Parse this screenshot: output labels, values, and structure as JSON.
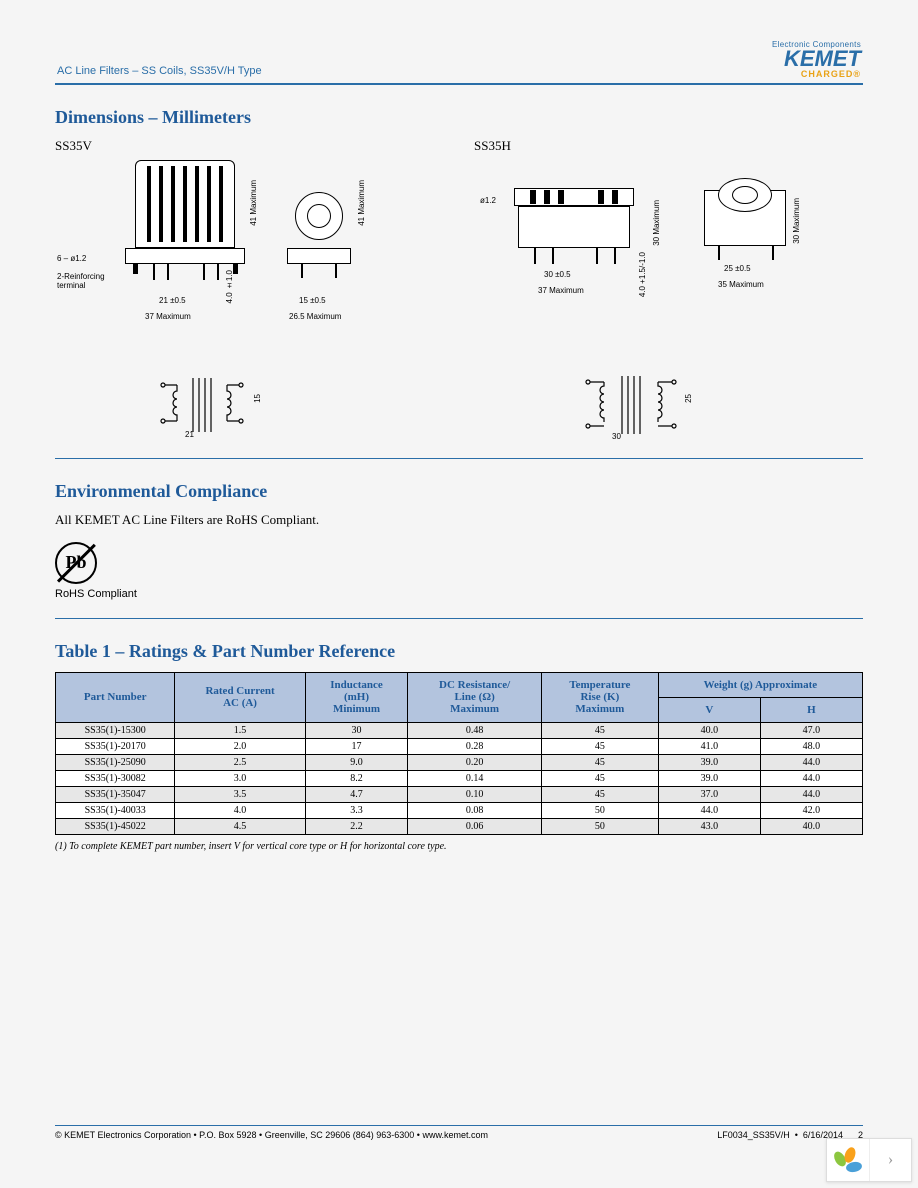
{
  "header": {
    "doc_title": "AC Line Filters – SS Coils, SS35V/H Type",
    "logo_tag": "Electronic Components",
    "logo_name": "KEMET",
    "logo_charged": "CHARGED®"
  },
  "dimensions": {
    "title": "Dimensions – Millimeters",
    "ss35v_label": "SS35V",
    "ss35h_label": "SS35H",
    "v": {
      "pin_note": "6 – ø1.2",
      "rein_note": "2-Reinforcing\nterminal",
      "h_max": "41 Maximum",
      "w1": "21 ±0.5",
      "w_max": "37 Maximum",
      "lead1": "4.0 ±1.0",
      "side_w": "15 ±0.5",
      "side_max": "26.5 Maximum",
      "sch_w": "21",
      "sch_h": "15"
    },
    "h": {
      "pin": "ø1.2",
      "top_w": "30 ±0.5",
      "w_max": "37 Maximum",
      "lead": "4.0 +1.5/-1.0",
      "h_max": "30 Maximum",
      "side_w": "25 ±0.5",
      "side_max": "35 Maximum",
      "sch_w": "30",
      "sch_h": "25"
    }
  },
  "env": {
    "title": "Environmental Compliance",
    "text": "All KEMET AC Line Filters are RoHS Compliant.",
    "pb": "Pb",
    "rohs": "RoHS Compliant"
  },
  "table1": {
    "title": "Table 1 – Ratings & Part Number Reference",
    "columns": {
      "part": "Part Number",
      "current": "Rated Current\nAC (A)",
      "inductance": "Inductance\n(mH)\nMinimum",
      "dcr": "DC Resistance/\nLine (Ω)\nMaximum",
      "temp": "Temperature\nRise (K)\nMaximum",
      "weight": "Weight (g) Approximate",
      "wv": "V",
      "wh": "H"
    },
    "rows": [
      {
        "part": "SS35(1)-15300",
        "cur": "1.5",
        "ind": "30",
        "dcr": "0.48",
        "temp": "45",
        "wv": "40.0",
        "wh": "47.0"
      },
      {
        "part": "SS35(1)-20170",
        "cur": "2.0",
        "ind": "17",
        "dcr": "0.28",
        "temp": "45",
        "wv": "41.0",
        "wh": "48.0"
      },
      {
        "part": "SS35(1)-25090",
        "cur": "2.5",
        "ind": "9.0",
        "dcr": "0.20",
        "temp": "45",
        "wv": "39.0",
        "wh": "44.0"
      },
      {
        "part": "SS35(1)-30082",
        "cur": "3.0",
        "ind": "8.2",
        "dcr": "0.14",
        "temp": "45",
        "wv": "39.0",
        "wh": "44.0"
      },
      {
        "part": "SS35(1)-35047",
        "cur": "3.5",
        "ind": "4.7",
        "dcr": "0.10",
        "temp": "45",
        "wv": "37.0",
        "wh": "44.0"
      },
      {
        "part": "SS35(1)-40033",
        "cur": "4.0",
        "ind": "3.3",
        "dcr": "0.08",
        "temp": "50",
        "wv": "44.0",
        "wh": "42.0"
      },
      {
        "part": "SS35(1)-45022",
        "cur": "4.5",
        "ind": "2.2",
        "dcr": "0.06",
        "temp": "50",
        "wv": "43.0",
        "wh": "40.0"
      }
    ],
    "footnote": "(1) To complete KEMET part number, insert V for vertical core type or H for horizontal core type."
  },
  "footer": {
    "left": "© KEMET Electronics Corporation • P.O. Box 5928 • Greenville, SC 29606 (864) 963-6300 • www.kemet.com",
    "right_doc": "LF0034_SS35V/H",
    "right_date": "6/16/2014",
    "right_page": "2"
  },
  "colors": {
    "accent": "#2a6ea8",
    "heading": "#1f5a99",
    "gold": "#e9a216",
    "th_bg": "#b3c4de",
    "row_alt": "#e7e7e7"
  }
}
